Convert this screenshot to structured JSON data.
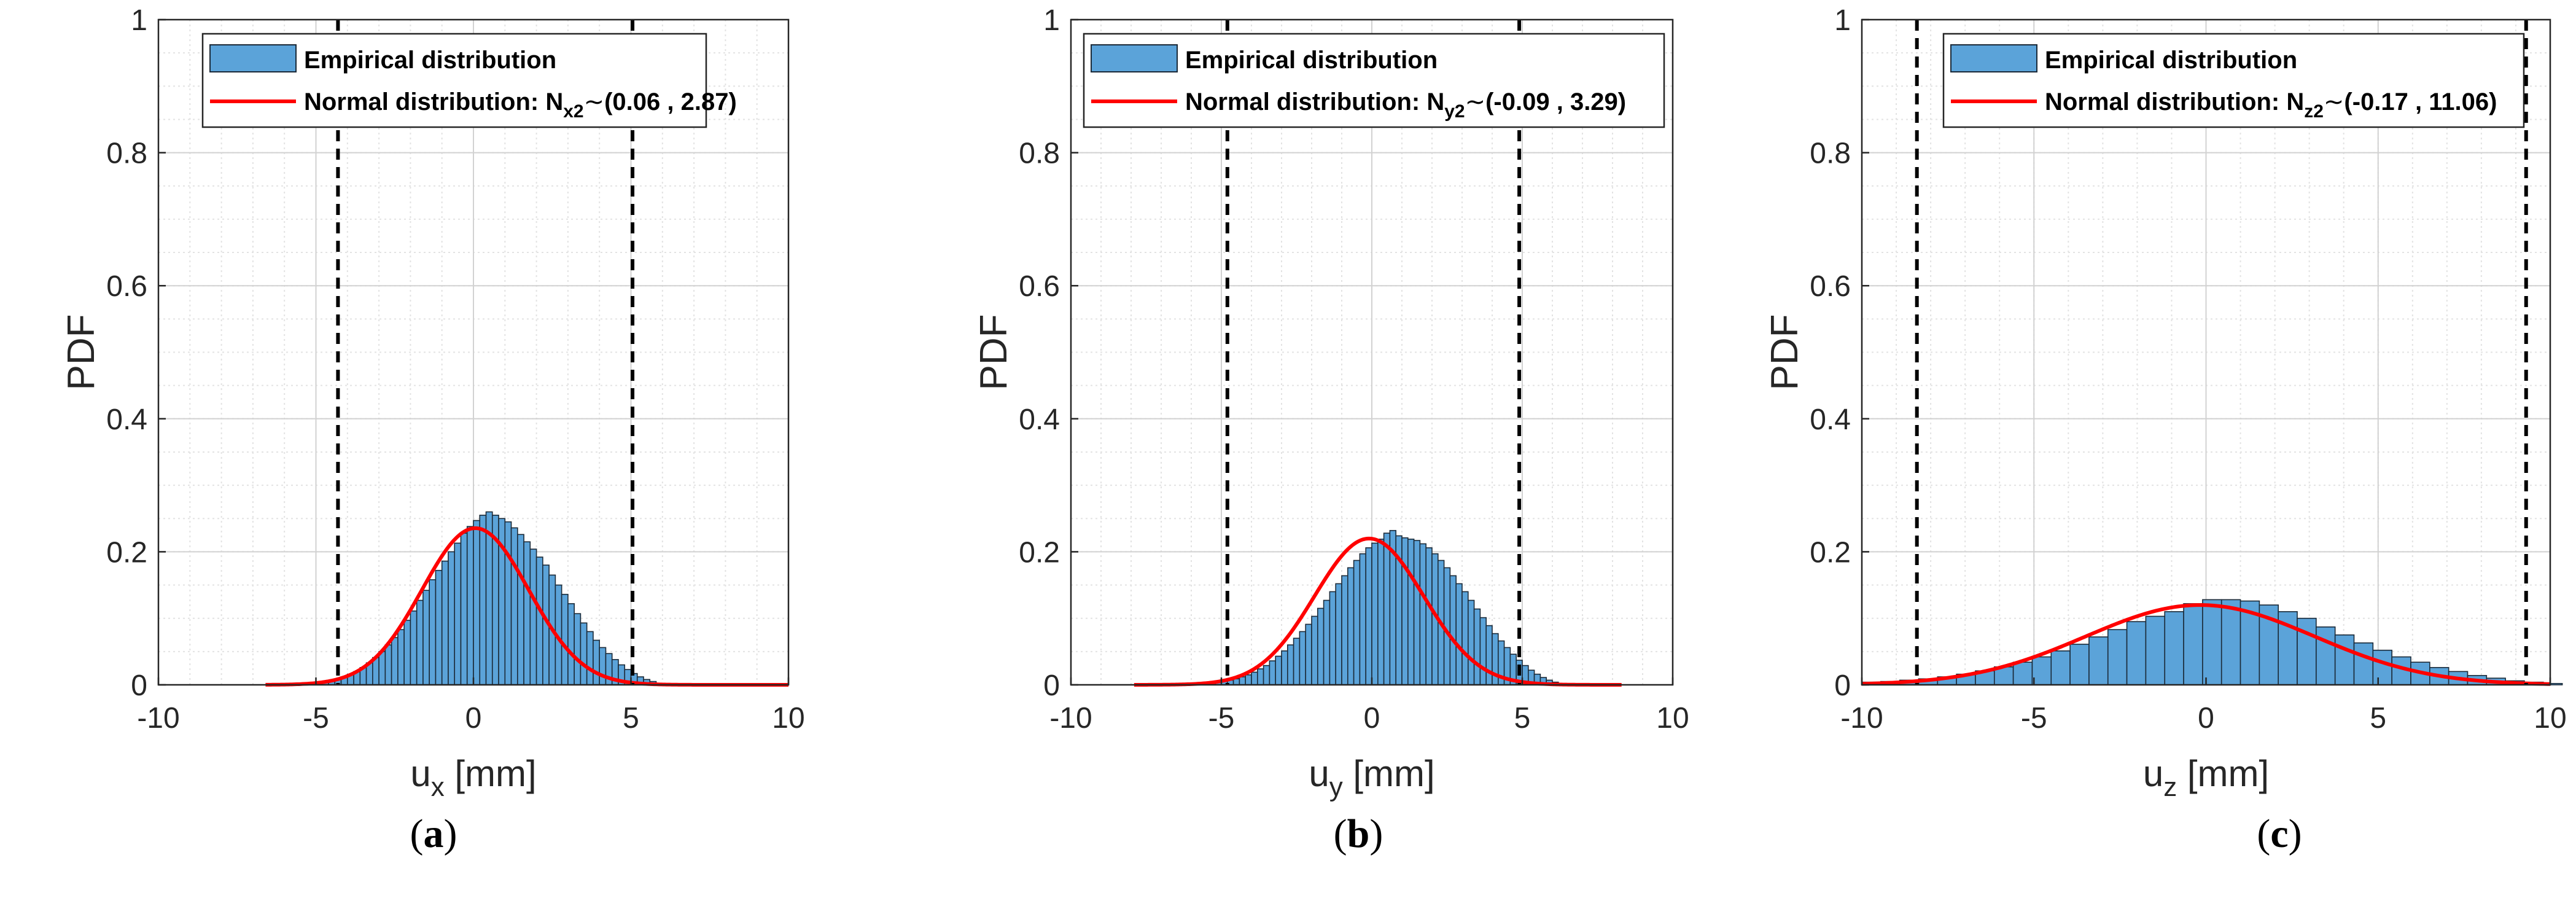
{
  "chart_data": [
    {
      "type": "histogram",
      "panel_label": "a",
      "xlabel_main": "u",
      "xlabel_sub": "x",
      "xlabel_unit": " [mm]",
      "ylabel": "PDF",
      "xlim": [
        -10,
        10
      ],
      "ylim": [
        0,
        1
      ],
      "xticks": [
        -10,
        -5,
        0,
        5,
        10
      ],
      "yticks": [
        0,
        0.2,
        0.4,
        0.6,
        0.8,
        1
      ],
      "ytick_labels": [
        "0",
        "0.2",
        "0.4",
        "0.6",
        "0.8",
        "1"
      ],
      "grid": true,
      "legend": {
        "hist_label": "Empirical distribution",
        "fit_prefix": "Normal distribution: N",
        "fit_sub": "x2",
        "fit_params": "(0.06 , 2.87)"
      },
      "fit": {
        "mean": 0.06,
        "variance": 2.87,
        "xrange": [
          -6.6,
          10
        ]
      },
      "bounds": [
        -4.3,
        5.05
      ],
      "bins": {
        "start": -5.4,
        "width": 0.2,
        "values": [
          0.001,
          0.002,
          0.003,
          0.005,
          0.007,
          0.009,
          0.012,
          0.016,
          0.02,
          0.026,
          0.033,
          0.041,
          0.05,
          0.06,
          0.071,
          0.083,
          0.097,
          0.111,
          0.127,
          0.142,
          0.158,
          0.172,
          0.186,
          0.2,
          0.213,
          0.228,
          0.238,
          0.247,
          0.255,
          0.26,
          0.255,
          0.25,
          0.245,
          0.236,
          0.226,
          0.215,
          0.204,
          0.192,
          0.18,
          0.165,
          0.15,
          0.136,
          0.122,
          0.107,
          0.093,
          0.08,
          0.067,
          0.056,
          0.047,
          0.038,
          0.03,
          0.023,
          0.017,
          0.012,
          0.008,
          0.005
        ]
      }
    },
    {
      "type": "histogram",
      "panel_label": "b",
      "xlabel_main": "u",
      "xlabel_sub": "y",
      "xlabel_unit": " [mm]",
      "ylabel": "PDF",
      "xlim": [
        -10,
        10
      ],
      "ylim": [
        0,
        1
      ],
      "xticks": [
        -10,
        -5,
        0,
        5,
        10
      ],
      "yticks": [
        0,
        0.2,
        0.4,
        0.6,
        0.8,
        1
      ],
      "ytick_labels": [
        "0",
        "0.2",
        "0.4",
        "0.6",
        "0.8",
        "1"
      ],
      "grid": true,
      "legend": {
        "hist_label": "Empirical distribution",
        "fit_prefix": "Normal distribution: N",
        "fit_sub": "y2",
        "fit_params": "(-0.09 , 3.29)"
      },
      "fit": {
        "mean": -0.09,
        "variance": 3.29,
        "xrange": [
          -7.9,
          8.3
        ]
      },
      "bounds": [
        -4.8,
        4.9
      ],
      "bins": {
        "start": -6.0,
        "width": 0.2,
        "values": [
          0.001,
          0.001,
          0.002,
          0.003,
          0.004,
          0.005,
          0.007,
          0.009,
          0.012,
          0.015,
          0.019,
          0.024,
          0.029,
          0.036,
          0.043,
          0.051,
          0.06,
          0.07,
          0.08,
          0.091,
          0.103,
          0.115,
          0.127,
          0.14,
          0.152,
          0.164,
          0.176,
          0.187,
          0.197,
          0.206,
          0.213,
          0.219,
          0.228,
          0.232,
          0.224,
          0.221,
          0.219,
          0.217,
          0.212,
          0.206,
          0.197,
          0.187,
          0.176,
          0.164,
          0.152,
          0.14,
          0.127,
          0.114,
          0.101,
          0.089,
          0.077,
          0.066,
          0.056,
          0.046,
          0.037,
          0.029,
          0.022,
          0.016,
          0.011,
          0.007,
          0.004,
          0.002
        ]
      }
    },
    {
      "type": "histogram",
      "panel_label": "c",
      "xlabel_main": "u",
      "xlabel_sub": "z",
      "xlabel_unit": " [mm]",
      "ylabel": "PDF",
      "xlim": [
        -10,
        10
      ],
      "ylim": [
        0,
        1
      ],
      "xticks": [
        -10,
        -5,
        0,
        5,
        10
      ],
      "yticks": [
        0,
        0.2,
        0.4,
        0.6,
        0.8,
        1
      ],
      "ytick_labels": [
        "0",
        "0.2",
        "0.4",
        "0.6",
        "0.8",
        "1"
      ],
      "grid": true,
      "legend": {
        "hist_label": "Empirical distribution",
        "fit_prefix": "Normal distribution: N",
        "fit_sub": "z2",
        "fit_params": "(-0.17 , 11.06)"
      },
      "fit": {
        "mean": -0.17,
        "variance": 11.06,
        "xrange": [
          -10,
          10
        ]
      },
      "bounds": [
        -8.4,
        9.3
      ],
      "bins": {
        "start": -10.0,
        "width": 0.55,
        "values": [
          0.004,
          0.005,
          0.007,
          0.009,
          0.012,
          0.016,
          0.021,
          0.027,
          0.034,
          0.042,
          0.051,
          0.061,
          0.072,
          0.083,
          0.095,
          0.103,
          0.11,
          0.122,
          0.128,
          0.128,
          0.126,
          0.12,
          0.11,
          0.1,
          0.087,
          0.075,
          0.063,
          0.052,
          0.042,
          0.034,
          0.026,
          0.02,
          0.014,
          0.01,
          0.006,
          0.004,
          0.002
        ]
      }
    }
  ]
}
